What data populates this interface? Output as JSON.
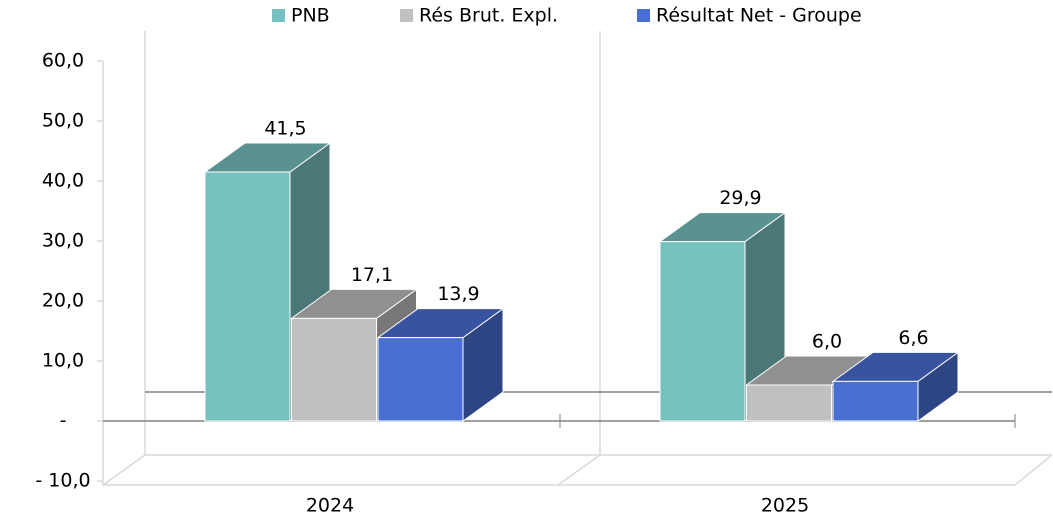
{
  "chart_data": {
    "type": "bar3d",
    "categories": [
      "2024",
      "2025"
    ],
    "series": [
      {
        "name": "PNB",
        "color": "#76c2c0",
        "values": [
          41.5,
          29.9
        ],
        "value_labels": [
          "41,5",
          "29,9"
        ]
      },
      {
        "name": "Rés Brut. Expl.",
        "color": "#c0c0c0",
        "values": [
          17.1,
          6.0
        ],
        "value_labels": [
          "17,1",
          "6,0"
        ]
      },
      {
        "name": "Résultat Net  - Groupe",
        "color": "#4a6fd4",
        "values": [
          13.9,
          6.6
        ],
        "value_labels": [
          "13,9",
          "6,6"
        ]
      }
    ],
    "ylim": [
      -10,
      60
    ],
    "yticks": [
      {
        "value": -10,
        "label": "- 10,0"
      },
      {
        "value": 0,
        "label": "-"
      },
      {
        "value": 10,
        "label": "10,0"
      },
      {
        "value": 20,
        "label": "20,0"
      },
      {
        "value": 30,
        "label": "30,0"
      },
      {
        "value": 40,
        "label": "40,0"
      },
      {
        "value": 50,
        "label": "50,0"
      },
      {
        "value": 60,
        "label": "60,0"
      }
    ],
    "legend": "top"
  }
}
